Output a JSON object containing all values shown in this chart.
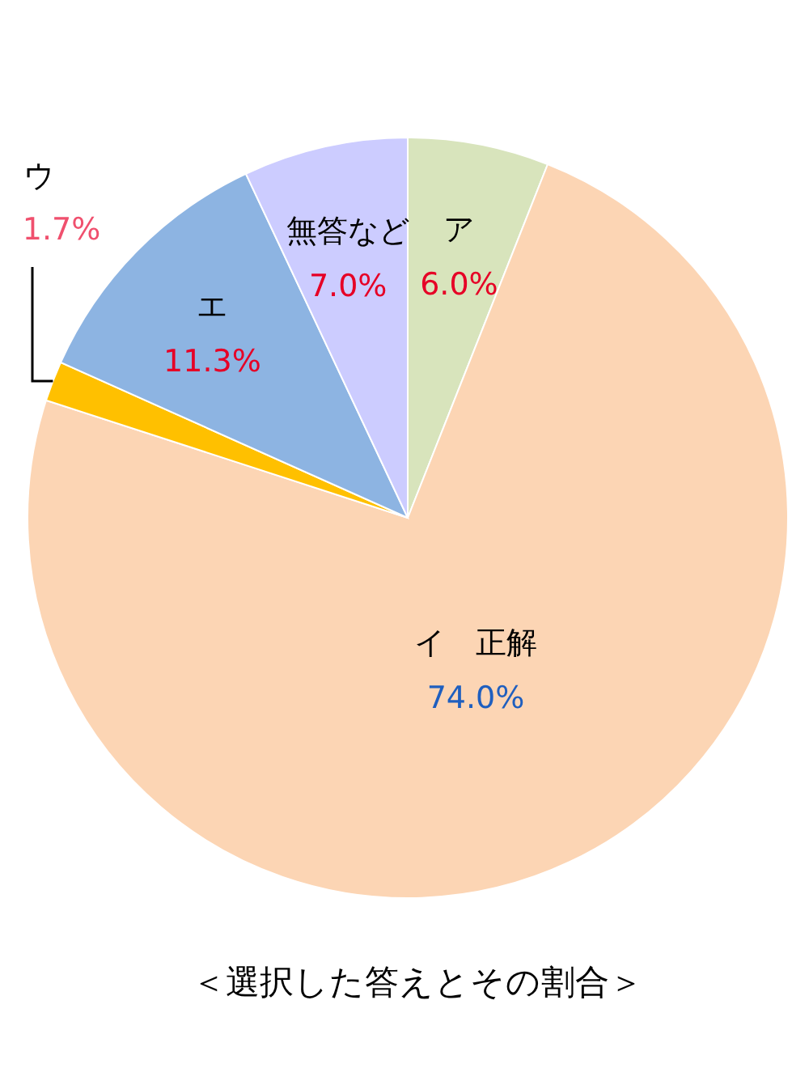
{
  "chart_data": {
    "type": "pie",
    "title": "＜選択した答えとその割合＞",
    "categories": [
      "ア",
      "イ　正解",
      "ウ",
      "エ",
      "無答など"
    ],
    "values": [
      6.0,
      74.0,
      1.7,
      11.3,
      7.0
    ],
    "colors": [
      "#d8e4bc",
      "#fcd5b4",
      "#ffc000",
      "#8db4e2",
      "#ccccff"
    ],
    "value_labels": [
      "6.0%",
      "74.0%",
      "1.7%",
      "11.3%",
      "7.0%"
    ]
  }
}
